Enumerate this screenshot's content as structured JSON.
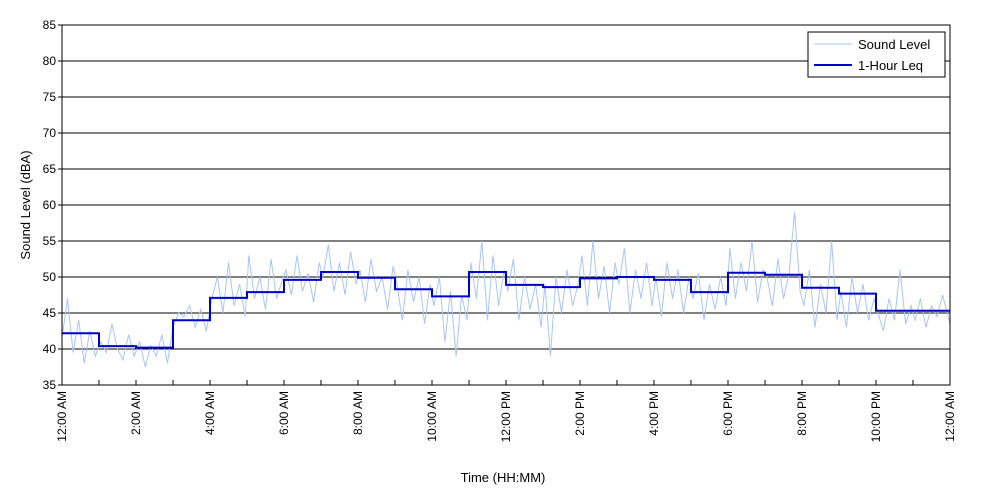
{
  "colors": {
    "sound_level": "#a9c4f5",
    "leq": "#0000cc",
    "grid": "#000000",
    "background": "#ffffff"
  },
  "chart_data": {
    "type": "line",
    "title": "",
    "xlabel": "Time (HH:MM)",
    "ylabel": "Sound Level (dBA)",
    "xlim": [
      0,
      24
    ],
    "ylim": [
      35,
      85
    ],
    "yticks": [
      35,
      40,
      45,
      50,
      55,
      60,
      65,
      70,
      75,
      80,
      85
    ],
    "xticks": [
      {
        "hour": 0,
        "label": "12:00 AM"
      },
      {
        "hour": 2,
        "label": "2:00 AM"
      },
      {
        "hour": 4,
        "label": "4:00 AM"
      },
      {
        "hour": 6,
        "label": "6:00 AM"
      },
      {
        "hour": 8,
        "label": "8:00 AM"
      },
      {
        "hour": 10,
        "label": "10:00 AM"
      },
      {
        "hour": 12,
        "label": "12:00 PM"
      },
      {
        "hour": 14,
        "label": "2:00 PM"
      },
      {
        "hour": 16,
        "label": "4:00 PM"
      },
      {
        "hour": 18,
        "label": "6:00 PM"
      },
      {
        "hour": 20,
        "label": "8:00 PM"
      },
      {
        "hour": 22,
        "label": "10:00 PM"
      },
      {
        "hour": 24,
        "label": "12:00 AM"
      }
    ],
    "grid": "horizontal",
    "legend_position": "top-right",
    "series": [
      {
        "name": "Sound Level",
        "style": "thin-line",
        "description_values": "fluctuating per-minute levels",
        "points": [
          [
            0.0,
            41.5
          ],
          [
            0.15,
            47.0
          ],
          [
            0.3,
            39.5
          ],
          [
            0.45,
            44.0
          ],
          [
            0.6,
            38.0
          ],
          [
            0.75,
            42.5
          ],
          [
            0.9,
            39.0
          ],
          [
            1.05,
            41.0
          ],
          [
            1.2,
            39.5
          ],
          [
            1.35,
            43.5
          ],
          [
            1.5,
            40.0
          ],
          [
            1.65,
            38.5
          ],
          [
            1.8,
            42.0
          ],
          [
            1.95,
            39.0
          ],
          [
            2.1,
            41.0
          ],
          [
            2.25,
            37.5
          ],
          [
            2.4,
            40.5
          ],
          [
            2.55,
            39.0
          ],
          [
            2.7,
            42.0
          ],
          [
            2.85,
            38.0
          ],
          [
            3.0,
            43.0
          ],
          [
            3.15,
            45.0
          ],
          [
            3.3,
            44.5
          ],
          [
            3.45,
            46.0
          ],
          [
            3.6,
            43.0
          ],
          [
            3.75,
            45.5
          ],
          [
            3.9,
            42.5
          ],
          [
            4.05,
            47.0
          ],
          [
            4.2,
            50.0
          ],
          [
            4.35,
            45.0
          ],
          [
            4.5,
            52.0
          ],
          [
            4.65,
            46.0
          ],
          [
            4.8,
            49.0
          ],
          [
            4.95,
            44.5
          ],
          [
            5.05,
            53.0
          ],
          [
            5.2,
            47.0
          ],
          [
            5.35,
            50.0
          ],
          [
            5.5,
            45.5
          ],
          [
            5.65,
            52.5
          ],
          [
            5.8,
            47.0
          ],
          [
            5.95,
            49.5
          ],
          [
            6.05,
            51.0
          ],
          [
            6.2,
            47.5
          ],
          [
            6.35,
            53.0
          ],
          [
            6.5,
            48.0
          ],
          [
            6.65,
            50.5
          ],
          [
            6.8,
            46.5
          ],
          [
            6.95,
            52.0
          ],
          [
            7.05,
            50.0
          ],
          [
            7.2,
            54.5
          ],
          [
            7.35,
            48.0
          ],
          [
            7.5,
            52.0
          ],
          [
            7.65,
            47.5
          ],
          [
            7.8,
            53.5
          ],
          [
            7.95,
            49.0
          ],
          [
            8.05,
            51.0
          ],
          [
            8.2,
            46.5
          ],
          [
            8.35,
            52.5
          ],
          [
            8.5,
            48.0
          ],
          [
            8.65,
            50.0
          ],
          [
            8.8,
            45.5
          ],
          [
            8.95,
            51.5
          ],
          [
            9.05,
            49.0
          ],
          [
            9.2,
            44.0
          ],
          [
            9.35,
            51.0
          ],
          [
            9.5,
            46.5
          ],
          [
            9.65,
            50.0
          ],
          [
            9.8,
            43.5
          ],
          [
            9.95,
            49.0
          ],
          [
            10.05,
            46.0
          ],
          [
            10.2,
            50.0
          ],
          [
            10.35,
            41.0
          ],
          [
            10.5,
            48.0
          ],
          [
            10.65,
            39.0
          ],
          [
            10.8,
            47.5
          ],
          [
            10.95,
            44.0
          ],
          [
            11.05,
            52.0
          ],
          [
            11.2,
            47.0
          ],
          [
            11.35,
            55.0
          ],
          [
            11.5,
            44.0
          ],
          [
            11.65,
            53.0
          ],
          [
            11.8,
            46.0
          ],
          [
            11.95,
            51.0
          ],
          [
            12.05,
            48.0
          ],
          [
            12.2,
            52.5
          ],
          [
            12.35,
            44.0
          ],
          [
            12.5,
            50.0
          ],
          [
            12.65,
            45.5
          ],
          [
            12.8,
            49.0
          ],
          [
            12.95,
            43.0
          ],
          [
            13.05,
            49.0
          ],
          [
            13.2,
            39.0
          ],
          [
            13.35,
            50.0
          ],
          [
            13.5,
            45.0
          ],
          [
            13.65,
            51.0
          ],
          [
            13.8,
            46.0
          ],
          [
            13.95,
            49.0
          ],
          [
            14.05,
            53.0
          ],
          [
            14.2,
            46.0
          ],
          [
            14.35,
            55.0
          ],
          [
            14.5,
            47.0
          ],
          [
            14.65,
            51.5
          ],
          [
            14.8,
            45.0
          ],
          [
            14.95,
            52.0
          ],
          [
            15.05,
            49.0
          ],
          [
            15.2,
            54.0
          ],
          [
            15.35,
            45.0
          ],
          [
            15.5,
            51.0
          ],
          [
            15.65,
            47.0
          ],
          [
            15.8,
            52.0
          ],
          [
            15.95,
            46.0
          ],
          [
            16.05,
            50.0
          ],
          [
            16.2,
            44.5
          ],
          [
            16.35,
            52.0
          ],
          [
            16.5,
            47.0
          ],
          [
            16.65,
            51.0
          ],
          [
            16.8,
            45.0
          ],
          [
            16.95,
            50.0
          ],
          [
            17.05,
            47.0
          ],
          [
            17.2,
            50.5
          ],
          [
            17.35,
            44.0
          ],
          [
            17.5,
            49.0
          ],
          [
            17.65,
            45.5
          ],
          [
            17.8,
            50.0
          ],
          [
            17.95,
            46.0
          ],
          [
            18.05,
            54.0
          ],
          [
            18.2,
            47.0
          ],
          [
            18.35,
            52.0
          ],
          [
            18.5,
            48.0
          ],
          [
            18.65,
            55.0
          ],
          [
            18.8,
            46.5
          ],
          [
            18.95,
            51.0
          ],
          [
            19.05,
            50.0
          ],
          [
            19.2,
            46.0
          ],
          [
            19.35,
            52.5
          ],
          [
            19.5,
            47.0
          ],
          [
            19.65,
            50.5
          ],
          [
            19.8,
            59.0
          ],
          [
            19.95,
            48.0
          ],
          [
            20.05,
            46.0
          ],
          [
            20.2,
            51.0
          ],
          [
            20.35,
            43.0
          ],
          [
            20.5,
            49.0
          ],
          [
            20.65,
            45.0
          ],
          [
            20.8,
            55.0
          ],
          [
            20.95,
            44.0
          ],
          [
            21.05,
            48.0
          ],
          [
            21.2,
            43.0
          ],
          [
            21.35,
            50.0
          ],
          [
            21.5,
            45.0
          ],
          [
            21.65,
            49.0
          ],
          [
            21.8,
            44.0
          ],
          [
            21.95,
            47.0
          ],
          [
            22.05,
            45.0
          ],
          [
            22.2,
            42.5
          ],
          [
            22.35,
            47.0
          ],
          [
            22.5,
            44.0
          ],
          [
            22.65,
            51.0
          ],
          [
            22.8,
            43.5
          ],
          [
            22.95,
            46.0
          ],
          [
            23.05,
            44.0
          ],
          [
            23.2,
            47.0
          ],
          [
            23.35,
            43.0
          ],
          [
            23.5,
            46.0
          ],
          [
            23.65,
            44.5
          ],
          [
            23.8,
            47.5
          ],
          [
            24.0,
            43.5
          ]
        ]
      },
      {
        "name": "1-Hour Leq",
        "style": "step",
        "hours": [
          0,
          1,
          2,
          3,
          4,
          5,
          6,
          7,
          8,
          9,
          10,
          11,
          12,
          13,
          14,
          15,
          16,
          17,
          18,
          19,
          20,
          21,
          22,
          23
        ],
        "values": [
          42.2,
          40.4,
          40.2,
          44.0,
          47.1,
          47.9,
          49.6,
          50.7,
          49.9,
          48.3,
          47.3,
          50.7,
          48.9,
          48.6,
          49.8,
          50.0,
          49.6,
          47.9,
          50.6,
          50.3,
          48.5,
          47.7,
          45.3,
          45.3
        ]
      }
    ]
  },
  "legend": {
    "items": [
      {
        "label": "Sound Level"
      },
      {
        "label": "1-Hour Leq"
      }
    ]
  }
}
